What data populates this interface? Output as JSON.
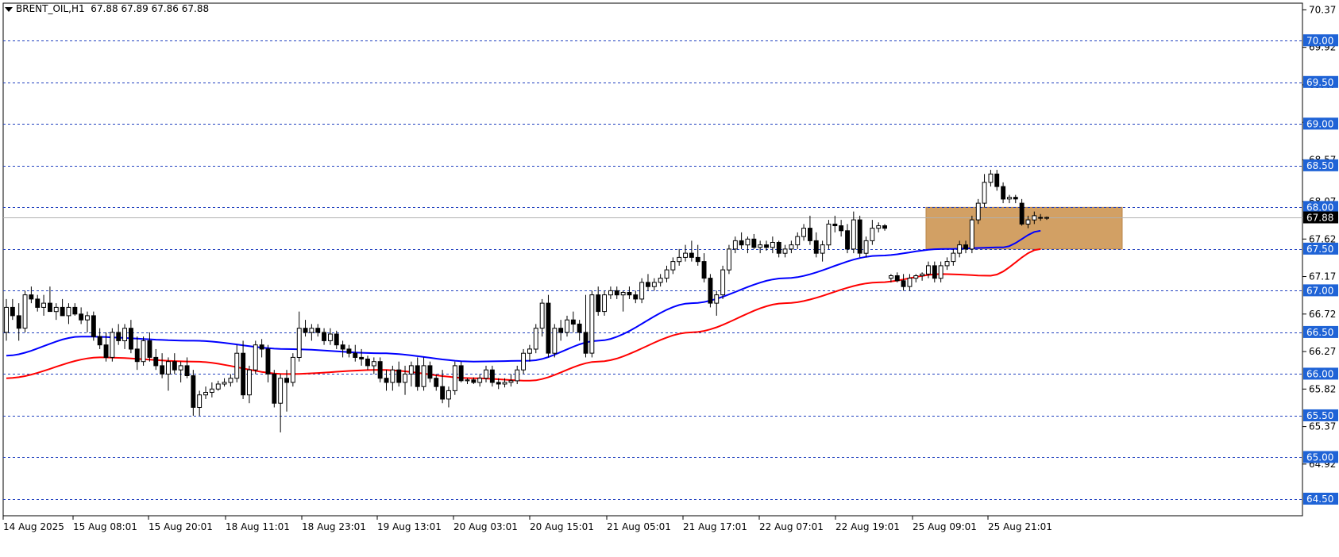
{
  "header": {
    "symbol": "BRENT_OIL,H1",
    "ohlc": "67.88 67.89 67.86 67.88",
    "menu_icon": "triangle-down-icon"
  },
  "colors": {
    "background": "#ffffff",
    "candle": "#000000",
    "ema_fast": "#0000ff",
    "ema_slow": "#ff0000",
    "level_line": "#1f3fbf",
    "level_label_bg": "#1f63d6",
    "zone_fill": "#d2a064",
    "current_price_bg": "#000000"
  },
  "chart_data": {
    "type": "candlestick",
    "symbol": "BRENT_OIL",
    "timeframe": "H1",
    "ylim": [
      64.3,
      70.45
    ],
    "grid": false,
    "y_ticks": [
      "70.37",
      "69.92",
      "69.47",
      "69.02",
      "68.57",
      "68.07",
      "67.62",
      "67.17",
      "66.72",
      "66.27",
      "65.82",
      "65.37",
      "64.92"
    ],
    "x_labels": [
      "14 Aug 2025",
      "15 Aug 08:01",
      "15 Aug 20:01",
      "18 Aug 11:01",
      "18 Aug 23:01",
      "19 Aug 13:01",
      "20 Aug 03:01",
      "20 Aug 15:01",
      "21 Aug 05:01",
      "21 Aug 17:01",
      "22 Aug 07:01",
      "22 Aug 19:01",
      "25 Aug 09:01",
      "25 Aug 21:01"
    ],
    "levels": [
      "70.00",
      "69.50",
      "69.00",
      "68.50",
      "68.00",
      "67.50",
      "67.00",
      "66.50",
      "66.00",
      "65.50",
      "65.00",
      "64.50"
    ],
    "current_price": "67.88",
    "zone": {
      "price_high": 68.0,
      "price_low": 67.5,
      "color": "#d2a064"
    },
    "candles": [
      [
        66.5,
        66.9,
        66.4,
        66.8
      ],
      [
        66.8,
        66.9,
        66.65,
        66.7
      ],
      [
        66.7,
        66.85,
        66.4,
        66.55
      ],
      [
        66.55,
        67.0,
        66.5,
        66.95
      ],
      [
        66.95,
        67.05,
        66.85,
        66.9
      ],
      [
        66.9,
        66.95,
        66.75,
        66.8
      ],
      [
        66.8,
        66.95,
        66.7,
        66.85
      ],
      [
        66.85,
        67.05,
        66.8,
        66.75
      ],
      [
        66.75,
        66.85,
        66.65,
        66.8
      ],
      [
        66.8,
        66.9,
        66.7,
        66.7
      ],
      [
        66.7,
        66.85,
        66.6,
        66.8
      ],
      [
        66.8,
        66.85,
        66.7,
        66.72
      ],
      [
        66.72,
        66.8,
        66.6,
        66.65
      ],
      [
        66.65,
        66.75,
        66.5,
        66.7
      ],
      [
        66.7,
        66.75,
        66.4,
        66.45
      ],
      [
        66.45,
        66.55,
        66.3,
        66.35
      ],
      [
        66.35,
        66.5,
        66.15,
        66.2
      ],
      [
        66.2,
        66.55,
        66.15,
        66.5
      ],
      [
        66.5,
        66.6,
        66.35,
        66.4
      ],
      [
        66.4,
        66.6,
        66.3,
        66.55
      ],
      [
        66.55,
        66.65,
        66.25,
        66.3
      ],
      [
        66.3,
        66.45,
        66.05,
        66.15
      ],
      [
        66.15,
        66.45,
        66.1,
        66.4
      ],
      [
        66.4,
        66.5,
        66.15,
        66.2
      ],
      [
        66.2,
        66.3,
        66.05,
        66.1
      ],
      [
        66.1,
        66.25,
        65.95,
        66.0
      ],
      [
        66.0,
        66.2,
        65.8,
        66.15
      ],
      [
        66.15,
        66.25,
        66.0,
        66.05
      ],
      [
        66.05,
        66.15,
        65.9,
        66.1
      ],
      [
        66.1,
        66.2,
        65.95,
        65.98
      ],
      [
        65.98,
        66.05,
        65.5,
        65.6
      ],
      [
        65.6,
        65.8,
        65.5,
        65.75
      ],
      [
        65.75,
        65.85,
        65.7,
        65.78
      ],
      [
        65.78,
        65.9,
        65.72,
        65.82
      ],
      [
        65.82,
        65.92,
        65.8,
        65.88
      ],
      [
        65.88,
        65.95,
        65.85,
        65.9
      ],
      [
        65.9,
        66.0,
        65.85,
        65.95
      ],
      [
        65.95,
        66.35,
        65.9,
        66.25
      ],
      [
        66.25,
        66.4,
        65.7,
        65.75
      ],
      [
        65.75,
        66.1,
        65.65,
        66.05
      ],
      [
        66.05,
        66.4,
        66.0,
        66.35
      ],
      [
        66.35,
        66.42,
        66.2,
        66.3
      ],
      [
        66.3,
        66.35,
        65.9,
        66.0
      ],
      [
        66.0,
        66.05,
        65.6,
        65.65
      ],
      [
        65.65,
        66.0,
        65.3,
        65.95
      ],
      [
        65.95,
        66.05,
        65.55,
        65.9
      ],
      [
        65.9,
        66.25,
        65.85,
        66.2
      ],
      [
        66.2,
        66.75,
        66.15,
        66.55
      ],
      [
        66.55,
        66.65,
        66.45,
        66.5
      ],
      [
        66.5,
        66.6,
        66.4,
        66.55
      ],
      [
        66.55,
        66.6,
        66.45,
        66.5
      ],
      [
        66.5,
        66.55,
        66.35,
        66.4
      ],
      [
        66.4,
        66.55,
        66.35,
        66.48
      ],
      [
        66.48,
        66.52,
        66.3,
        66.35
      ],
      [
        66.35,
        66.4,
        66.2,
        66.3
      ],
      [
        66.3,
        66.35,
        66.2,
        66.25
      ],
      [
        66.25,
        66.35,
        66.15,
        66.2
      ],
      [
        66.2,
        66.3,
        66.1,
        66.18
      ],
      [
        66.18,
        66.22,
        66.05,
        66.1
      ],
      [
        66.1,
        66.2,
        66.0,
        66.15
      ],
      [
        66.15,
        66.2,
        65.9,
        65.95
      ],
      [
        65.95,
        66.05,
        65.8,
        65.9
      ],
      [
        65.9,
        66.1,
        65.8,
        66.05
      ],
      [
        66.05,
        66.15,
        65.85,
        65.9
      ],
      [
        65.9,
        66.1,
        65.75,
        66.0
      ],
      [
        66.0,
        66.15,
        65.85,
        66.1
      ],
      [
        66.1,
        66.2,
        65.8,
        65.85
      ],
      [
        65.85,
        66.2,
        65.8,
        66.1
      ],
      [
        66.1,
        66.15,
        65.9,
        65.95
      ],
      [
        65.95,
        66.0,
        65.8,
        65.85
      ],
      [
        65.85,
        66.05,
        65.65,
        65.7
      ],
      [
        65.7,
        65.85,
        65.6,
        65.8
      ],
      [
        65.8,
        66.15,
        65.75,
        66.1
      ],
      [
        66.1,
        66.15,
        65.9,
        65.92
      ],
      [
        65.92,
        65.95,
        65.88,
        65.93
      ],
      [
        65.93,
        65.96,
        65.88,
        65.9
      ],
      [
        65.9,
        66.0,
        65.85,
        65.95
      ],
      [
        65.95,
        66.1,
        65.9,
        66.05
      ],
      [
        66.05,
        66.1,
        65.85,
        65.9
      ],
      [
        65.9,
        65.95,
        65.82,
        65.88
      ],
      [
        65.88,
        65.95,
        65.84,
        65.9
      ],
      [
        65.9,
        66.0,
        65.85,
        65.92
      ],
      [
        65.92,
        66.1,
        65.88,
        66.05
      ],
      [
        66.05,
        66.3,
        66.0,
        66.25
      ],
      [
        66.25,
        66.35,
        66.15,
        66.3
      ],
      [
        66.3,
        66.6,
        66.25,
        66.55
      ],
      [
        66.55,
        66.9,
        66.45,
        66.85
      ],
      [
        66.85,
        66.95,
        66.2,
        66.25
      ],
      [
        66.25,
        66.6,
        66.2,
        66.55
      ],
      [
        66.55,
        66.65,
        66.4,
        66.5
      ],
      [
        66.5,
        66.7,
        66.45,
        66.65
      ],
      [
        66.65,
        66.75,
        66.5,
        66.6
      ],
      [
        66.6,
        66.65,
        66.4,
        66.5
      ],
      [
        66.5,
        66.95,
        66.2,
        66.25
      ],
      [
        66.25,
        67.0,
        66.2,
        66.95
      ],
      [
        66.95,
        67.05,
        66.7,
        66.75
      ],
      [
        66.75,
        67.0,
        66.7,
        66.95
      ],
      [
        66.95,
        67.05,
        66.9,
        67.0
      ],
      [
        67.0,
        67.05,
        66.9,
        66.95
      ],
      [
        66.95,
        67.0,
        66.75,
        66.98
      ],
      [
        66.98,
        67.05,
        66.9,
        66.95
      ],
      [
        66.95,
        67.0,
        66.85,
        66.9
      ],
      [
        66.9,
        67.15,
        66.85,
        67.1
      ],
      [
        67.1,
        67.2,
        67.0,
        67.05
      ],
      [
        67.05,
        67.15,
        67.0,
        67.1
      ],
      [
        67.1,
        67.2,
        67.05,
        67.15
      ],
      [
        67.15,
        67.3,
        67.1,
        67.25
      ],
      [
        67.25,
        67.4,
        67.2,
        67.35
      ],
      [
        67.35,
        67.5,
        67.3,
        67.4
      ],
      [
        67.4,
        67.55,
        67.35,
        67.45
      ],
      [
        67.45,
        67.6,
        67.35,
        67.4
      ],
      [
        67.4,
        67.55,
        67.3,
        67.35
      ],
      [
        67.35,
        67.45,
        67.1,
        67.15
      ],
      [
        67.15,
        67.2,
        66.8,
        66.85
      ],
      [
        66.85,
        67.0,
        66.7,
        66.95
      ],
      [
        66.95,
        67.3,
        66.9,
        67.25
      ],
      [
        67.25,
        67.55,
        67.2,
        67.5
      ],
      [
        67.5,
        67.65,
        67.45,
        67.6
      ],
      [
        67.6,
        67.7,
        67.5,
        67.55
      ],
      [
        67.55,
        67.65,
        67.45,
        67.62
      ],
      [
        67.62,
        67.68,
        67.5,
        67.52
      ],
      [
        67.52,
        67.6,
        67.45,
        67.55
      ],
      [
        67.55,
        67.6,
        67.48,
        67.52
      ],
      [
        67.52,
        67.65,
        67.45,
        67.58
      ],
      [
        67.58,
        67.6,
        67.4,
        67.45
      ],
      [
        67.45,
        67.55,
        67.4,
        67.5
      ],
      [
        67.5,
        67.6,
        67.45,
        67.55
      ],
      [
        67.55,
        67.7,
        67.5,
        67.65
      ],
      [
        67.65,
        67.8,
        67.6,
        67.75
      ],
      [
        67.75,
        67.9,
        67.55,
        67.6
      ],
      [
        67.6,
        67.7,
        67.4,
        67.45
      ],
      [
        67.45,
        67.6,
        67.35,
        67.55
      ],
      [
        67.55,
        67.85,
        67.5,
        67.8
      ],
      [
        67.8,
        67.9,
        67.7,
        67.78
      ],
      [
        67.78,
        67.85,
        67.65,
        67.72
      ],
      [
        67.72,
        67.8,
        67.45,
        67.5
      ],
      [
        67.5,
        67.95,
        67.45,
        67.85
      ],
      [
        67.85,
        67.9,
        67.4,
        67.45
      ],
      [
        67.45,
        67.65,
        67.4,
        67.6
      ],
      [
        67.6,
        67.85,
        67.55,
        67.75
      ],
      [
        67.75,
        67.82,
        67.7,
        67.78
      ],
      [
        67.78,
        67.8,
        67.72,
        67.75
      ],
      [
        67.15,
        67.2,
        67.1,
        67.18
      ],
      [
        67.18,
        67.22,
        67.1,
        67.12
      ],
      [
        67.12,
        67.2,
        67.0,
        67.05
      ],
      [
        67.05,
        67.2,
        67.0,
        67.15
      ],
      [
        67.15,
        67.2,
        67.1,
        67.18
      ],
      [
        67.18,
        67.22,
        67.12,
        67.2
      ],
      [
        67.2,
        67.35,
        67.15,
        67.3
      ],
      [
        67.3,
        67.35,
        67.1,
        67.15
      ],
      [
        67.15,
        67.35,
        67.1,
        67.3
      ],
      [
        67.3,
        67.4,
        67.25,
        67.35
      ],
      [
        67.35,
        67.5,
        67.3,
        67.45
      ],
      [
        67.45,
        67.6,
        67.4,
        67.55
      ],
      [
        67.55,
        67.6,
        67.45,
        67.5
      ],
      [
        67.5,
        67.9,
        67.45,
        67.85
      ],
      [
        67.85,
        68.1,
        67.8,
        68.05
      ],
      [
        68.05,
        68.4,
        68.0,
        68.3
      ],
      [
        68.3,
        68.45,
        68.25,
        68.4
      ],
      [
        68.4,
        68.45,
        68.2,
        68.25
      ],
      [
        68.25,
        68.3,
        68.05,
        68.1
      ],
      [
        68.1,
        68.15,
        68.05,
        68.12
      ],
      [
        68.12,
        68.15,
        68.05,
        68.1
      ],
      [
        68.05,
        68.1,
        67.78,
        67.8
      ],
      [
        67.8,
        67.9,
        67.75,
        67.85
      ],
      [
        67.85,
        67.95,
        67.8,
        67.9
      ],
      [
        67.88,
        67.92,
        67.84,
        67.87
      ],
      [
        67.87,
        67.89,
        67.85,
        67.88
      ]
    ],
    "series": [
      {
        "color": "#0000ff",
        "start": 66.22,
        "end": 67.72,
        "waypoints": [
          [
            0,
            66.22
          ],
          [
            12,
            66.45
          ],
          [
            30,
            66.4
          ],
          [
            45,
            66.3
          ],
          [
            60,
            66.25
          ],
          [
            75,
            66.15
          ],
          [
            84,
            66.16
          ],
          [
            95,
            66.4
          ],
          [
            110,
            66.85
          ],
          [
            125,
            67.15
          ],
          [
            140,
            67.42
          ],
          [
            150,
            67.5
          ],
          [
            160,
            67.52
          ],
          [
            166,
            67.72
          ]
        ]
      },
      {
        "color": "#ff0000",
        "start": 65.95,
        "end": 67.5,
        "waypoints": [
          [
            0,
            65.95
          ],
          [
            15,
            66.2
          ],
          [
            30,
            66.15
          ],
          [
            45,
            66.0
          ],
          [
            60,
            66.05
          ],
          [
            75,
            65.95
          ],
          [
            84,
            65.92
          ],
          [
            95,
            66.15
          ],
          [
            110,
            66.5
          ],
          [
            125,
            66.85
          ],
          [
            140,
            67.1
          ],
          [
            150,
            67.2
          ],
          [
            158,
            67.18
          ],
          [
            166,
            67.5
          ]
        ]
      }
    ]
  }
}
